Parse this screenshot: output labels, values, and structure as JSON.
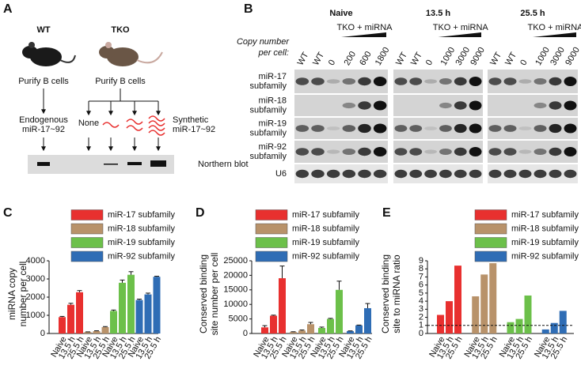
{
  "panel_labels": [
    "A",
    "B",
    "C",
    "D",
    "E"
  ],
  "panel_a": {
    "wt": "WT",
    "tko": "TKO",
    "purify": [
      "Purify B cells",
      "Purify B cells"
    ],
    "endogenous": [
      "Endogenous",
      "miR-17~92"
    ],
    "none": "None",
    "synthetic": [
      "Synthetic",
      "miR-17~92"
    ],
    "northern": "Northern blot"
  },
  "panel_b": {
    "conditions": [
      "Naive",
      "13.5 h",
      "25.5 h"
    ],
    "treatment": [
      "TKO + miRNA",
      "TKO + miRNA",
      "TKO + miRNA"
    ],
    "copy_label": [
      "Copy number",
      "per cell:"
    ],
    "lanes": [
      [
        "WT",
        "WT",
        "0",
        "200",
        "600",
        "1800"
      ],
      [
        "WT",
        "WT",
        "0",
        "1000",
        "3000",
        "9000"
      ],
      [
        "WT",
        "WT",
        "0",
        "1000",
        "3000",
        "9000"
      ]
    ],
    "rows": [
      [
        "miR-17",
        "subfamily"
      ],
      [
        "miR-18",
        "subfamily"
      ],
      [
        "miR-19",
        "subfamily"
      ],
      [
        "miR-92",
        "subfamily"
      ],
      [
        "U6"
      ]
    ]
  },
  "chart_data": [
    {
      "type": "bar",
      "ylabel": [
        "miRNA copy",
        "number per cell"
      ],
      "categories": [
        "Naive",
        "13.5 h",
        "25.5 h"
      ],
      "series": [
        {
          "name": "miR-17 subfamily",
          "color": "#e8302f",
          "values": [
            900,
            1580,
            2270
          ],
          "errors": [
            40,
            80,
            90
          ]
        },
        {
          "name": "miR-18 subfamily",
          "color": "#b8926a",
          "values": [
            80,
            130,
            350
          ],
          "errors": [
            10,
            20,
            30
          ]
        },
        {
          "name": "miR-19 subfamily",
          "color": "#6cc04a",
          "values": [
            1240,
            2790,
            3230
          ],
          "errors": [
            50,
            150,
            170
          ]
        },
        {
          "name": "miR-92 subfamily",
          "color": "#2f6db5",
          "values": [
            1840,
            2150,
            3120
          ],
          "errors": [
            50,
            70,
            30
          ]
        }
      ],
      "ylim": [
        0,
        4000
      ],
      "yticks": [
        0,
        1000,
        2000,
        3000,
        4000
      ]
    },
    {
      "type": "bar",
      "ylabel": [
        "Conserved binding",
        "site number per cell"
      ],
      "categories": [
        "Naive",
        "13.5 h",
        "25.5 h"
      ],
      "series": [
        {
          "name": "miR-17 subfamily",
          "color": "#e8302f",
          "values": [
            2100,
            6100,
            19000
          ],
          "errors": [
            600,
            200,
            4200
          ]
        },
        {
          "name": "miR-18 subfamily",
          "color": "#b8926a",
          "values": [
            500,
            1000,
            3200
          ],
          "errors": [
            100,
            200,
            600
          ]
        },
        {
          "name": "miR-19 subfamily",
          "color": "#6cc04a",
          "values": [
            1900,
            5000,
            15000
          ],
          "errors": [
            300,
            200,
            3000
          ]
        },
        {
          "name": "miR-92 subfamily",
          "color": "#2f6db5",
          "values": [
            800,
            2800,
            8700
          ],
          "errors": [
            100,
            100,
            1600
          ]
        }
      ],
      "ylim": [
        0,
        25000
      ],
      "yticks": [
        0,
        5000,
        10000,
        15000,
        20000,
        25000
      ]
    },
    {
      "type": "bar",
      "ylabel": [
        "Conserved binding",
        "site to miRNA ratio"
      ],
      "categories": [
        "Naive",
        "13.5 h",
        "25.5 h"
      ],
      "series": [
        {
          "name": "miR-17 subfamily",
          "color": "#e8302f",
          "values": [
            2.3,
            4,
            8.4
          ]
        },
        {
          "name": "miR-18 subfamily",
          "color": "#b8926a",
          "values": [
            4.6,
            7.3,
            8.7
          ]
        },
        {
          "name": "miR-19 subfamily",
          "color": "#6cc04a",
          "values": [
            1.4,
            1.8,
            4.7
          ]
        },
        {
          "name": "miR-92 subfamily",
          "color": "#2f6db5",
          "values": [
            0.5,
            1.3,
            2.8
          ]
        }
      ],
      "ylim": [
        0,
        9
      ],
      "yticks": [
        0,
        1,
        2,
        3,
        4,
        5,
        6,
        7,
        8,
        9
      ],
      "reference_line": 1
    }
  ]
}
